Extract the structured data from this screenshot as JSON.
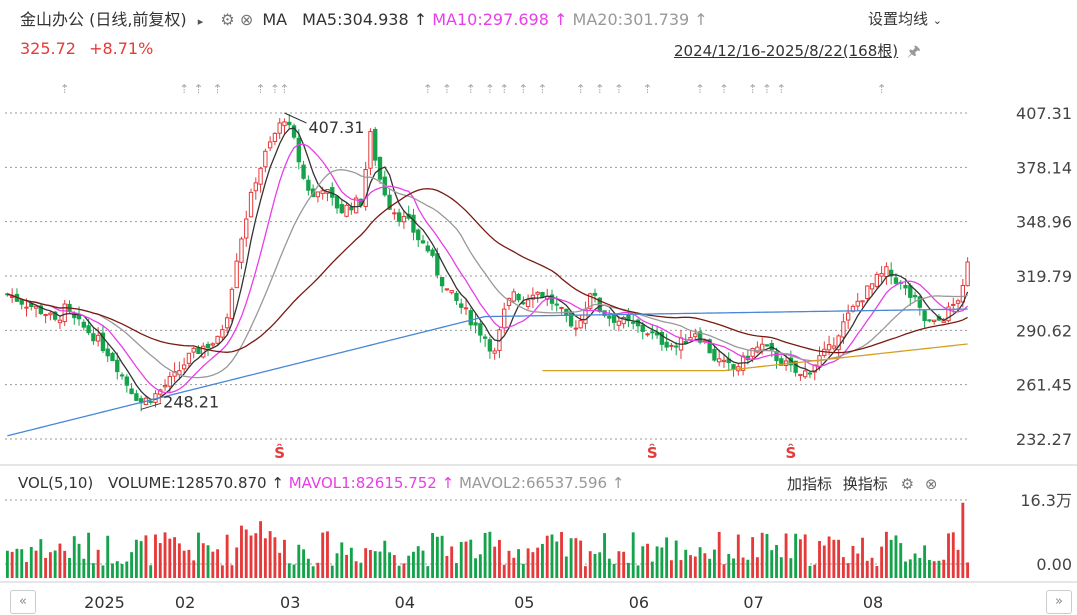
{
  "header": {
    "title": "金山办公 (日线,前复权)",
    "indicator_label": "MA",
    "ma5": "MA5:304.938",
    "ma10": "MA10:297.698",
    "ma20": "MA20:301.739",
    "settings_label": "设置均线",
    "price": "325.72",
    "change": "+8.71%",
    "range_label": "2024/12/16-2025/8/22(168根)"
  },
  "volume_header": {
    "vol_label": "VOL(5,10)",
    "volume": "VOLUME:128570.870",
    "mavol1": "MAVOL1:82615.752",
    "mavol2": "MAVOL2:66537.596",
    "add_indicator": "加指标",
    "switch_indicator": "换指标"
  },
  "price_axis": [
    "407.31",
    "378.14",
    "348.96",
    "319.79",
    "290.62",
    "261.45",
    "232.27"
  ],
  "volume_axis": [
    "16.3万",
    "0.00"
  ],
  "time_axis": [
    "2025",
    "02",
    "03",
    "04",
    "05",
    "06",
    "07",
    "08"
  ],
  "annotations": {
    "high": "407.31",
    "low": "248.21"
  },
  "colors": {
    "up": "#e63a3a",
    "down": "#14a34a",
    "ma5": "#333333",
    "ma10": "#e83ee8",
    "ma20": "#999999",
    "ma60": "#7a1a10",
    "ma120": "#4a86d8",
    "cost": "#d4a020",
    "grid": "#9a9a9a"
  },
  "chart_data": {
    "type": "candlestick",
    "title": "金山办公 (日线,前复权)",
    "ylim": [
      232.27,
      407.31
    ],
    "yticks": [
      407.31,
      378.14,
      348.96,
      319.79,
      290.62,
      261.45,
      232.27
    ],
    "x_months": [
      "2025",
      "02",
      "03",
      "04",
      "05",
      "06",
      "07",
      "08"
    ],
    "close_path": [
      [
        0,
        310
      ],
      [
        4,
        305
      ],
      [
        8,
        300
      ],
      [
        10,
        295
      ],
      [
        12,
        302
      ],
      [
        14,
        296
      ],
      [
        18,
        288
      ],
      [
        22,
        276
      ],
      [
        25,
        262
      ],
      [
        28,
        252
      ],
      [
        31,
        256
      ],
      [
        35,
        266
      ],
      [
        38,
        276
      ],
      [
        41,
        282
      ],
      [
        44,
        285
      ],
      [
        46,
        300
      ],
      [
        48,
        330
      ],
      [
        50,
        352
      ],
      [
        52,
        372
      ],
      [
        54,
        385
      ],
      [
        56,
        396
      ],
      [
        58,
        405
      ],
      [
        60,
        392
      ],
      [
        62,
        372
      ],
      [
        64,
        362
      ],
      [
        66,
        368
      ],
      [
        68,
        360
      ],
      [
        70,
        355
      ],
      [
        72,
        358
      ],
      [
        74,
        360
      ],
      [
        76,
        395
      ],
      [
        78,
        372
      ],
      [
        80,
        358
      ],
      [
        82,
        352
      ],
      [
        84,
        348
      ],
      [
        86,
        340
      ],
      [
        88,
        334
      ],
      [
        90,
        322
      ],
      [
        92,
        312
      ],
      [
        94,
        306
      ],
      [
        96,
        300
      ],
      [
        98,
        293
      ],
      [
        100,
        287
      ],
      [
        102,
        278
      ],
      [
        104,
        300
      ],
      [
        106,
        312
      ],
      [
        108,
        306
      ],
      [
        110,
        312
      ],
      [
        112,
        310
      ],
      [
        114,
        306
      ],
      [
        116,
        300
      ],
      [
        118,
        292
      ],
      [
        120,
        296
      ],
      [
        122,
        312
      ],
      [
        124,
        302
      ],
      [
        126,
        298
      ],
      [
        128,
        296
      ],
      [
        130,
        294
      ],
      [
        132,
        292
      ],
      [
        134,
        290
      ],
      [
        136,
        286
      ],
      [
        138,
        284
      ],
      [
        140,
        282
      ],
      [
        142,
        286
      ],
      [
        144,
        290
      ],
      [
        146,
        284
      ],
      [
        148,
        276
      ],
      [
        150,
        272
      ],
      [
        152,
        270
      ],
      [
        154,
        274
      ],
      [
        156,
        280
      ],
      [
        158,
        282
      ],
      [
        160,
        278
      ],
      [
        162,
        274
      ],
      [
        164,
        270
      ],
      [
        166,
        266
      ],
      [
        168,
        270
      ],
      [
        170,
        276
      ],
      [
        172,
        280
      ],
      [
        174,
        290
      ],
      [
        176,
        298
      ],
      [
        178,
        306
      ],
      [
        180,
        312
      ],
      [
        182,
        318
      ],
      [
        184,
        322
      ],
      [
        186,
        318
      ],
      [
        188,
        312
      ],
      [
        190,
        306
      ],
      [
        192,
        296
      ],
      [
        194,
        294
      ],
      [
        196,
        298
      ],
      [
        198,
        304
      ],
      [
        200,
        312
      ],
      [
        201,
        325.72
      ]
    ],
    "ma_series": [
      {
        "name": "MA5",
        "values": 304.938
      },
      {
        "name": "MA10",
        "values": 297.698
      },
      {
        "name": "MA20",
        "values": 301.739
      }
    ],
    "high": 407.31,
    "low": 248.21,
    "last_close": 325.72,
    "change_pct": "+8.71%",
    "volume_ylim": [
      0,
      163000
    ],
    "volume_last": 128570.87,
    "mavol1": 82615.752,
    "mavol2": 66537.596,
    "grid": true
  }
}
